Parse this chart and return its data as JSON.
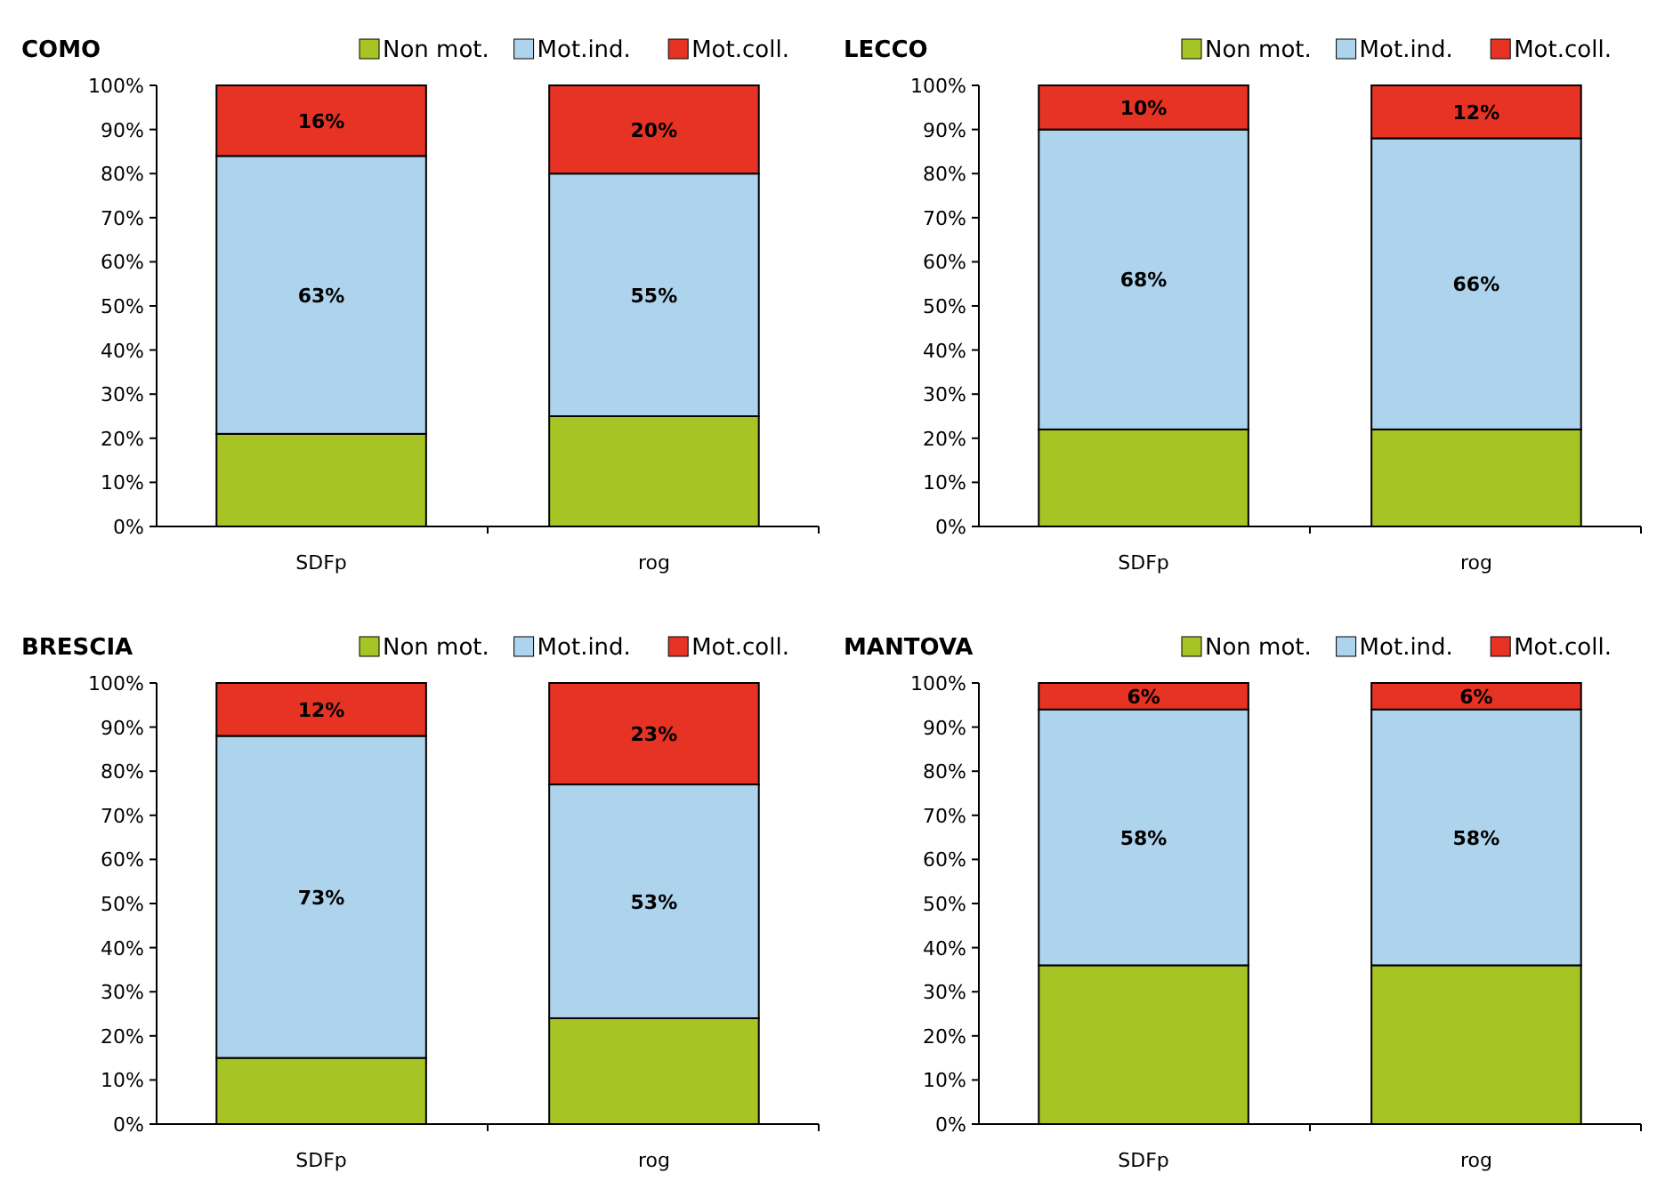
{
  "chart_data": [
    {
      "type": "bar",
      "stacked": true,
      "title": "COMO",
      "categories": [
        "SDFp",
        "rog"
      ],
      "legend": "top right",
      "grid": false,
      "ylim": [
        0,
        100
      ],
      "yticks": [
        {
          "value": 0,
          "label": "0%"
        },
        {
          "value": 10,
          "label": "10%"
        },
        {
          "value": 20,
          "label": "20%"
        },
        {
          "value": 30,
          "label": "30%"
        },
        {
          "value": 40,
          "label": "40%"
        },
        {
          "value": 50,
          "label": "50%"
        },
        {
          "value": 60,
          "label": "60%"
        },
        {
          "value": 70,
          "label": "70%"
        },
        {
          "value": 80,
          "label": "80%"
        },
        {
          "value": 90,
          "label": "90%"
        },
        {
          "value": 100,
          "label": "100%"
        }
      ],
      "series": [
        {
          "name": "Non mot.",
          "color": "#a6c525",
          "values": [
            21,
            25
          ]
        },
        {
          "name": "Mot.ind.",
          "color": "#aed3ec",
          "values": [
            63,
            55
          ],
          "value_labels": [
            "63%",
            "55%"
          ]
        },
        {
          "name": "Mot.coll.",
          "color": "#e63323",
          "values": [
            16,
            20
          ],
          "value_labels": [
            "16%",
            "20%"
          ]
        }
      ]
    },
    {
      "type": "bar",
      "stacked": true,
      "title": "LECCO",
      "categories": [
        "SDFp",
        "rog"
      ],
      "legend": "top right",
      "grid": false,
      "ylim": [
        0,
        100
      ],
      "yticks": [
        {
          "value": 0,
          "label": "0%"
        },
        {
          "value": 10,
          "label": "10%"
        },
        {
          "value": 20,
          "label": "20%"
        },
        {
          "value": 30,
          "label": "30%"
        },
        {
          "value": 40,
          "label": "40%"
        },
        {
          "value": 50,
          "label": "50%"
        },
        {
          "value": 60,
          "label": "60%"
        },
        {
          "value": 70,
          "label": "70%"
        },
        {
          "value": 80,
          "label": "80%"
        },
        {
          "value": 90,
          "label": "90%"
        },
        {
          "value": 100,
          "label": "100%"
        }
      ],
      "series": [
        {
          "name": "Non mot.",
          "color": "#a6c525",
          "values": [
            22,
            22
          ]
        },
        {
          "name": "Mot.ind.",
          "color": "#aed3ec",
          "values": [
            68,
            66
          ],
          "value_labels": [
            "68%",
            "66%"
          ]
        },
        {
          "name": "Mot.coll.",
          "color": "#e63323",
          "values": [
            10,
            12
          ],
          "value_labels": [
            "10%",
            "12%"
          ]
        }
      ]
    },
    {
      "type": "bar",
      "stacked": true,
      "title": "BRESCIA",
      "categories": [
        "SDFp",
        "rog"
      ],
      "legend": "top right",
      "grid": false,
      "ylim": [
        0,
        100
      ],
      "yticks": [
        {
          "value": 0,
          "label": "0%"
        },
        {
          "value": 10,
          "label": "10%"
        },
        {
          "value": 20,
          "label": "20%"
        },
        {
          "value": 30,
          "label": "30%"
        },
        {
          "value": 40,
          "label": "40%"
        },
        {
          "value": 50,
          "label": "50%"
        },
        {
          "value": 60,
          "label": "60%"
        },
        {
          "value": 70,
          "label": "70%"
        },
        {
          "value": 80,
          "label": "80%"
        },
        {
          "value": 90,
          "label": "90%"
        },
        {
          "value": 100,
          "label": "100%"
        }
      ],
      "series": [
        {
          "name": "Non mot.",
          "color": "#a6c525",
          "values": [
            15,
            24
          ]
        },
        {
          "name": "Mot.ind.",
          "color": "#aed3ec",
          "values": [
            73,
            53
          ],
          "value_labels": [
            "73%",
            "53%"
          ]
        },
        {
          "name": "Mot.coll.",
          "color": "#e63323",
          "values": [
            12,
            23
          ],
          "value_labels": [
            "12%",
            "23%"
          ]
        }
      ]
    },
    {
      "type": "bar",
      "stacked": true,
      "title": "MANTOVA",
      "categories": [
        "SDFp",
        "rog"
      ],
      "legend": "top right",
      "grid": false,
      "ylim": [
        0,
        100
      ],
      "yticks": [
        {
          "value": 0,
          "label": "0%"
        },
        {
          "value": 10,
          "label": "10%"
        },
        {
          "value": 20,
          "label": "20%"
        },
        {
          "value": 30,
          "label": "30%"
        },
        {
          "value": 40,
          "label": "40%"
        },
        {
          "value": 50,
          "label": "50%"
        },
        {
          "value": 60,
          "label": "60%"
        },
        {
          "value": 70,
          "label": "70%"
        },
        {
          "value": 80,
          "label": "80%"
        },
        {
          "value": 90,
          "label": "90%"
        },
        {
          "value": 100,
          "label": "100%"
        }
      ],
      "series": [
        {
          "name": "Non mot.",
          "color": "#a6c525",
          "values": [
            36,
            36
          ]
        },
        {
          "name": "Mot.ind.",
          "color": "#aed3ec",
          "values": [
            58,
            58
          ],
          "value_labels": [
            "58%",
            "58%"
          ]
        },
        {
          "name": "Mot.coll.",
          "color": "#e63323",
          "values": [
            6,
            6
          ],
          "value_labels": [
            "6%",
            "6%"
          ]
        }
      ]
    }
  ]
}
